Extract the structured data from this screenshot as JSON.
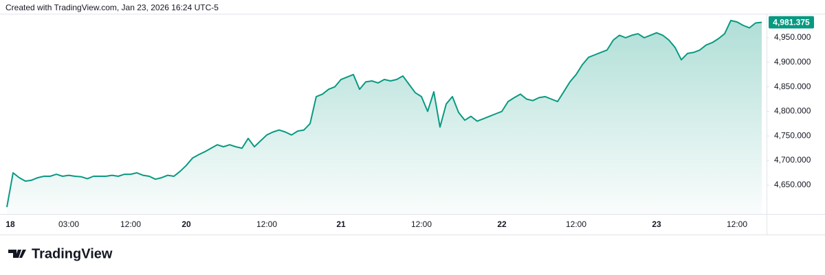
{
  "header": {
    "caption": "Created with TradingView.com, Jan 23, 2026 16:24 UTC-5"
  },
  "footer": {
    "brand": "TradingView"
  },
  "chart_data": {
    "type": "area",
    "color": "#089981",
    "categories": [
      "18",
      null,
      null,
      null,
      null,
      null,
      null,
      null,
      null,
      null,
      "03:00",
      null,
      null,
      null,
      null,
      null,
      null,
      null,
      null,
      null,
      "12:00",
      null,
      null,
      null,
      null,
      null,
      null,
      null,
      null,
      "20",
      null,
      null,
      null,
      null,
      null,
      null,
      null,
      null,
      null,
      null,
      null,
      null,
      "12:00",
      null,
      null,
      null,
      null,
      null,
      null,
      null,
      null,
      null,
      null,
      null,
      "21",
      null,
      null,
      null,
      null,
      null,
      null,
      null,
      null,
      null,
      null,
      null,
      null,
      "12:00",
      null,
      null,
      null,
      null,
      null,
      null,
      null,
      null,
      null,
      null,
      null,
      null,
      "22",
      null,
      null,
      null,
      null,
      null,
      null,
      null,
      null,
      null,
      null,
      null,
      "12:00",
      null,
      null,
      null,
      null,
      null,
      null,
      null,
      null,
      null,
      null,
      null,
      null,
      "23",
      null,
      null,
      null,
      null,
      null,
      null,
      null,
      null,
      null,
      null,
      null,
      null,
      "12:00",
      null,
      null,
      null,
      null
    ],
    "values": [
      4605,
      4675,
      4665,
      4658,
      4660,
      4665,
      4668,
      4668,
      4672,
      4668,
      4670,
      4668,
      4667,
      4663,
      4668,
      4668,
      4668,
      4670,
      4668,
      4672,
      4672,
      4675,
      4670,
      4668,
      4662,
      4665,
      4670,
      4668,
      4678,
      4690,
      4705,
      4712,
      4718,
      4725,
      4732,
      4728,
      4732,
      4728,
      4725,
      4745,
      4728,
      4740,
      4752,
      4758,
      4762,
      4758,
      4752,
      4760,
      4762,
      4775,
      4830,
      4835,
      4845,
      4850,
      4865,
      4870,
      4875,
      4845,
      4860,
      4862,
      4858,
      4865,
      4862,
      4865,
      4872,
      4855,
      4838,
      4830,
      4800,
      4840,
      4768,
      4815,
      4830,
      4798,
      4782,
      4790,
      4780,
      4785,
      4790,
      4795,
      4800,
      4820,
      4828,
      4835,
      4825,
      4822,
      4828,
      4830,
      4825,
      4820,
      4840,
      4860,
      4875,
      4895,
      4910,
      4915,
      4920,
      4925,
      4945,
      4955,
      4950,
      4955,
      4958,
      4950,
      4955,
      4960,
      4955,
      4945,
      4930,
      4905,
      4918,
      4920,
      4925,
      4935,
      4940,
      4948,
      4958,
      4985,
      4982,
      4975,
      4970,
      4980,
      4981.375
    ],
    "value_labels": [
      null,
      null,
      null,
      null,
      null,
      null,
      null,
      null,
      null,
      null,
      null,
      null,
      null,
      null,
      null,
      null,
      null,
      null,
      null,
      null,
      null,
      null,
      null,
      null,
      null,
      null,
      null,
      null,
      null,
      null,
      null,
      null,
      null,
      null,
      null,
      null,
      null,
      null,
      null,
      null,
      null,
      null,
      null,
      null,
      null,
      null,
      null,
      null,
      null,
      null,
      null,
      null,
      null,
      null,
      null,
      null,
      null,
      null,
      null,
      null,
      null,
      null,
      null,
      null,
      null,
      null,
      null,
      null,
      null,
      null,
      null,
      null,
      null,
      null,
      null,
      null,
      null,
      null,
      null,
      null,
      null,
      null,
      null,
      null,
      null,
      null,
      null,
      null,
      null,
      null,
      null,
      null,
      null,
      null,
      null,
      null,
      null,
      null,
      null,
      null,
      null,
      null,
      null,
      null,
      null,
      null,
      null,
      null,
      null,
      null,
      null,
      null,
      null,
      null,
      null,
      null,
      null,
      null,
      null,
      null,
      null,
      null,
      "4,981.375"
    ],
    "ylim": [
      4594,
      4996
    ],
    "yticks": [
      {
        "value": 4650,
        "label": "4,650.000"
      },
      {
        "value": 4700,
        "label": "4,700.000"
      },
      {
        "value": 4750,
        "label": "4,750.000"
      },
      {
        "value": 4800,
        "label": "4,800.000"
      },
      {
        "value": 4850,
        "label": "4,850.000"
      },
      {
        "value": 4900,
        "label": "4,900.000"
      },
      {
        "value": 4950,
        "label": "4,950.000"
      }
    ]
  }
}
